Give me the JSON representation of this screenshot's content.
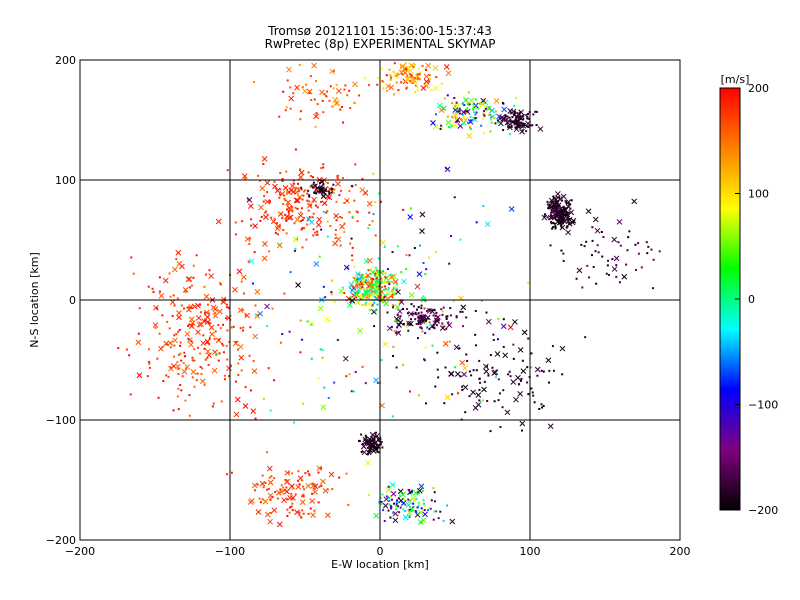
{
  "chart_data": {
    "type": "scatter",
    "title": "Tromsø 20121101 15:36:00-15:37:43",
    "subtitle": "RwPretec (8p) EXPERIMENTAL SKYMAP",
    "xlabel": "E-W location [km]",
    "ylabel": "N-S location [km]",
    "xlim": [
      -200,
      200
    ],
    "ylim": [
      -200,
      200
    ],
    "xticks": [
      -200,
      -100,
      0,
      100,
      200
    ],
    "yticks": [
      -200,
      -100,
      0,
      100,
      200
    ],
    "grid": true,
    "colorbar": {
      "label": "[m/s]",
      "range": [
        -200,
        200
      ],
      "ticks": [
        200,
        100,
        0,
        -100,
        -200
      ],
      "colormap": [
        "#000000",
        "#800080",
        "#0000ff",
        "#00ffff",
        "#00ff00",
        "#ffff00",
        "#ff8000",
        "#ff0000"
      ]
    },
    "marker_types": [
      "cross",
      "dot"
    ],
    "clusters": [
      {
        "center": [
          -40,
          170
        ],
        "spread": [
          40,
          30
        ],
        "count": 60,
        "value_range": [
          120,
          200
        ]
      },
      {
        "center": [
          20,
          185
        ],
        "spread": [
          25,
          15
        ],
        "count": 90,
        "value_range": [
          80,
          200
        ]
      },
      {
        "center": [
          60,
          155
        ],
        "spread": [
          30,
          20
        ],
        "count": 120,
        "value_range": [
          -200,
          150
        ]
      },
      {
        "center": [
          90,
          150
        ],
        "spread": [
          15,
          10
        ],
        "count": 100,
        "value_range": [
          -200,
          -160
        ]
      },
      {
        "center": [
          120,
          72
        ],
        "spread": [
          10,
          15
        ],
        "count": 160,
        "value_range": [
          -200,
          -170
        ]
      },
      {
        "center": [
          -50,
          80
        ],
        "spread": [
          50,
          40
        ],
        "count": 220,
        "value_range": [
          150,
          200
        ]
      },
      {
        "center": [
          -40,
          92
        ],
        "spread": [
          12,
          8
        ],
        "count": 40,
        "value_range": [
          -200,
          -170
        ]
      },
      {
        "center": [
          -5,
          10
        ],
        "spread": [
          20,
          20
        ],
        "count": 220,
        "value_range": [
          -50,
          200
        ]
      },
      {
        "center": [
          30,
          -15
        ],
        "spread": [
          25,
          15
        ],
        "count": 120,
        "value_range": [
          -200,
          -140
        ]
      },
      {
        "center": [
          -120,
          -30
        ],
        "spread": [
          50,
          70
        ],
        "count": 260,
        "value_range": [
          150,
          200
        ]
      },
      {
        "center": [
          -60,
          -160
        ],
        "spread": [
          40,
          30
        ],
        "count": 120,
        "value_range": [
          150,
          200
        ]
      },
      {
        "center": [
          -5,
          -120
        ],
        "spread": [
          10,
          10
        ],
        "count": 70,
        "value_range": [
          -200,
          -170
        ]
      },
      {
        "center": [
          20,
          -170
        ],
        "spread": [
          30,
          20
        ],
        "count": 110,
        "value_range": [
          -200,
          80
        ]
      },
      {
        "center": [
          80,
          -60
        ],
        "spread": [
          50,
          50
        ],
        "count": 110,
        "value_range": [
          -200,
          -170
        ]
      },
      {
        "center": [
          150,
          40
        ],
        "spread": [
          40,
          40
        ],
        "count": 60,
        "value_range": [
          -200,
          -150
        ]
      },
      {
        "center": [
          0,
          0
        ],
        "spread": [
          120,
          120
        ],
        "count": 200,
        "value_range": [
          -200,
          200
        ]
      }
    ]
  }
}
